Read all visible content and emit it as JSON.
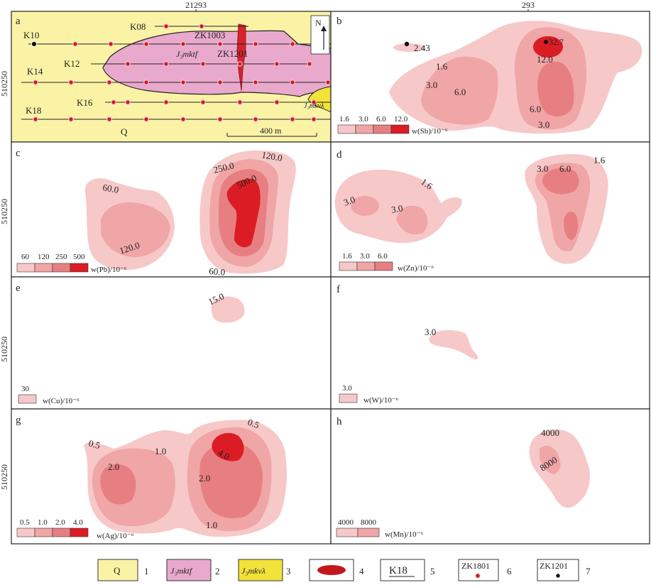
{
  "top_coords": {
    "left": "21293",
    "right": "293"
  },
  "side_coords": [
    "510250",
    "510250",
    "510250",
    "510250"
  ],
  "panels": {
    "a": {
      "letter": "a",
      "lines": [
        "K08",
        "K10",
        "K12",
        "K14",
        "K16",
        "K18"
      ],
      "drillholes": [
        "ZK1003",
        "ZK1201"
      ],
      "units": {
        "mktf_label": "J₃mktf",
        "mkvl_label": "J₃mkνλ",
        "q_label": "Q"
      },
      "north": "N",
      "scale": "400 m"
    },
    "b": {
      "letter": "b",
      "point_value": "2.43",
      "contour_labels": [
        "1.6",
        "3.0",
        "6.0",
        "12.0",
        "6.0",
        "3.0",
        "32.7"
      ],
      "legend": {
        "values": [
          "1.6",
          "3.0",
          "6.0",
          "12.0"
        ],
        "element": "w(Sb)/10⁻⁶"
      }
    },
    "c": {
      "letter": "c",
      "contour_labels": [
        "60.0",
        "120.0",
        "250.0",
        "500.0",
        "120.0",
        "60.0"
      ],
      "legend": {
        "values": [
          "60",
          "120",
          "250",
          "500"
        ],
        "element": "w(Pb)/10⁻⁶"
      }
    },
    "d": {
      "letter": "d",
      "contour_labels": [
        "1.6",
        "3.0",
        "3.0",
        "3.0",
        "6.0",
        "1.6"
      ],
      "legend": {
        "values": [
          "1.6",
          "3.0",
          "6.0"
        ],
        "element": "w(Zn)/10⁻⁶"
      }
    },
    "e": {
      "letter": "e",
      "contour_labels": [
        "15.0"
      ],
      "legend": {
        "values": [
          "30"
        ],
        "element": "w(Cu)/10⁻⁶"
      }
    },
    "f": {
      "letter": "f",
      "contour_labels": [
        "3.0"
      ],
      "legend": {
        "values": [
          "3.0"
        ],
        "element": "w(W)/10⁻⁶"
      }
    },
    "g": {
      "letter": "g",
      "contour_labels": [
        "0.5",
        "1.0",
        "2.0",
        "4.0",
        "0.5",
        "2.0",
        "1.0"
      ],
      "legend": {
        "values": [
          "0.5",
          "1.0",
          "2.0",
          "4.0"
        ],
        "element": "w(Ag)/10⁻⁶"
      }
    },
    "h": {
      "letter": "h",
      "contour_labels": [
        "4000",
        "8000"
      ],
      "legend": {
        "values": [
          "4000",
          "8000"
        ],
        "element": "w(Mn)/10⁻⁶"
      }
    }
  },
  "bottom_legend": [
    {
      "symbol": "Q",
      "number": "1"
    },
    {
      "symbol": "J₃mktf",
      "number": "2"
    },
    {
      "symbol": "J₃mkνλ",
      "number": "3"
    },
    {
      "symbol": "",
      "number": "4"
    },
    {
      "symbol": "K18",
      "number": "5"
    },
    {
      "symbol": "ZK1801",
      "number": "6"
    },
    {
      "symbol": "ZK1201",
      "number": "7"
    }
  ],
  "colors": {
    "q_fill": "#faf3a6",
    "mktf_fill": "#e9a9cc",
    "mkvl_fill": "#f2e23a",
    "c1": "#f7c8c8",
    "c2": "#f0a5a6",
    "c3": "#e77f82",
    "c4": "#dc1c24"
  }
}
